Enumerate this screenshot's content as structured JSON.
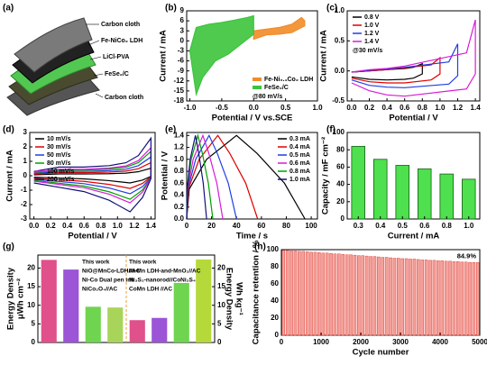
{
  "chart_data": [
    {
      "type": "diagram",
      "panel": "(a)",
      "labels": [
        "Carbon cloth",
        "Fe-NiCo₂ LDH",
        "LiCl-PVA",
        "FeSe₂/C",
        "Carbon cloth"
      ]
    },
    {
      "type": "line",
      "panel": "(b)",
      "fill": true,
      "xlabel": "Potential / V vs.SCE",
      "ylabel": "Current / mA",
      "xlim": [
        -1.05,
        1.0
      ],
      "ylim": [
        -18,
        9
      ],
      "xticks": [
        {
          "value": -1,
          "label": "-1.0"
        },
        -0.5,
        {
          "value": 0,
          "label": "0.0"
        },
        0.5,
        {
          "value": 1,
          "label": "1.0"
        }
      ],
      "yticks": [
        -18,
        -15,
        -12,
        -9,
        -6,
        -3,
        0,
        3,
        6,
        9
      ],
      "legend": "lower right",
      "annotation": "@80 mV/s",
      "series": [
        {
          "name": "Fe-Ni₀.₁Co₂ LDH",
          "color": "#f28c28",
          "x": [
            0,
            0.2,
            0.4,
            0.6,
            0.75,
            0.8,
            0.8,
            0.6,
            0.4,
            0.2,
            0
          ],
          "values": [
            3,
            3.5,
            4,
            5,
            7,
            6,
            4.5,
            2.5,
            2,
            1.8,
            0.5
          ]
        },
        {
          "name": "FeSe₂/C",
          "color": "#3cc43c",
          "x": [
            -1.0,
            -0.9,
            -0.7,
            -0.5,
            -0.3,
            -0.1,
            0,
            0,
            -0.2,
            -0.4,
            -0.6,
            -0.8,
            -0.9,
            -1.0
          ],
          "values": [
            -3,
            4,
            5,
            5.5,
            6.2,
            7,
            7.5,
            2,
            -1,
            -4,
            -6,
            -11,
            -16,
            -3
          ]
        }
      ]
    },
    {
      "type": "line",
      "panel": "(c)",
      "xlabel": "Potential / V",
      "ylabel": "Current / mA",
      "xlim": [
        -0.05,
        1.45
      ],
      "ylim": [
        -0.5,
        1.0
      ],
      "xticks": [
        {
          "value": 0,
          "label": "0.0"
        },
        0.2,
        0.4,
        0.6,
        0.8,
        {
          "value": 1,
          "label": "1.0"
        },
        1.2,
        1.4
      ],
      "yticks": [
        -0.5,
        {
          "value": 0,
          "label": "0.0"
        },
        0.5,
        {
          "value": 1,
          "label": "1.0"
        }
      ],
      "legend": "upper left",
      "annotation": "@30 mV/s",
      "series": [
        {
          "name": "0.8 V",
          "color": "#000000",
          "x": [
            0,
            0.2,
            0.4,
            0.6,
            0.7,
            0.8,
            0.8,
            0.7,
            0.6,
            0.4,
            0.2,
            0
          ],
          "values": [
            -0.02,
            0,
            0.02,
            0.04,
            0.06,
            0.12,
            -0.05,
            -0.12,
            -0.14,
            -0.15,
            -0.14,
            -0.1
          ]
        },
        {
          "name": "1.0 V",
          "color": "#e00000",
          "x": [
            0,
            0.2,
            0.4,
            0.6,
            0.9,
            1.0,
            1.0,
            0.9,
            0.6,
            0.4,
            0.2,
            0
          ],
          "values": [
            -0.02,
            0,
            0.02,
            0.05,
            0.1,
            0.22,
            -0.05,
            -0.15,
            -0.2,
            -0.2,
            -0.18,
            -0.12
          ]
        },
        {
          "name": "1.2 V",
          "color": "#1f3fe0",
          "x": [
            0,
            0.2,
            0.4,
            0.6,
            1.1,
            1.2,
            1.2,
            1.1,
            0.6,
            0.4,
            0.2,
            0
          ],
          "values": [
            -0.02,
            0.01,
            0.03,
            0.06,
            0.15,
            0.45,
            -0.08,
            -0.22,
            -0.28,
            -0.27,
            -0.24,
            -0.15
          ]
        },
        {
          "name": "1.4 V",
          "color": "#d81bd8",
          "x": [
            0,
            0.2,
            0.4,
            0.6,
            1.3,
            1.4,
            1.4,
            1.3,
            0.6,
            0.4,
            0.2,
            0
          ],
          "values": [
            -0.02,
            0.02,
            0.04,
            0.08,
            0.3,
            0.85,
            -0.05,
            -0.3,
            -0.42,
            -0.4,
            -0.33,
            -0.2
          ]
        }
      ]
    },
    {
      "type": "line",
      "panel": "(d)",
      "xlabel": "Potential / V",
      "ylabel": "Current / mA",
      "xlim": [
        -0.05,
        1.45
      ],
      "ylim": [
        -3,
        3
      ],
      "xticks": [
        {
          "value": 0,
          "label": "0.0"
        },
        0.2,
        0.4,
        0.6,
        0.8,
        {
          "value": 1,
          "label": "1.0"
        },
        1.2,
        1.4
      ],
      "yticks": [
        -3,
        -2,
        -1,
        0,
        1,
        2,
        3
      ],
      "legend": "upper left",
      "x": [
        0,
        0.3,
        0.6,
        0.9,
        1.1,
        1.25,
        1.4,
        1.4,
        1.3,
        1.15,
        0.9,
        0.6,
        0.3,
        0
      ],
      "series": [
        {
          "name": "10 mV/s",
          "color": "#000000",
          "values": [
            0.06,
            0.12,
            0.12,
            0.14,
            0.18,
            0.28,
            0.52,
            -0.04,
            -0.3,
            -0.5,
            -0.34,
            -0.22,
            -0.16,
            -0.1
          ]
        },
        {
          "name": "30 mV/s",
          "color": "#e00000",
          "values": [
            0.11,
            0.21,
            0.21,
            0.25,
            0.32,
            0.49,
            0.91,
            -0.07,
            -0.53,
            -0.88,
            -0.6,
            -0.39,
            -0.28,
            -0.18
          ]
        },
        {
          "name": "50 mV/s",
          "color": "#1f3fe0",
          "values": [
            0.15,
            0.3,
            0.3,
            0.35,
            0.45,
            0.7,
            1.3,
            -0.1,
            -0.75,
            -1.25,
            -0.85,
            -0.55,
            -0.4,
            -0.25
          ]
        },
        {
          "name": "80 mV/s",
          "color": "#00a000",
          "values": [
            0.2,
            0.39,
            0.39,
            0.46,
            0.59,
            0.91,
            1.69,
            -0.13,
            -0.98,
            -1.63,
            -1.11,
            -0.72,
            -0.52,
            -0.33
          ]
        },
        {
          "name": "100 mV/s",
          "color": "#d81bd8",
          "values": [
            0.23,
            0.45,
            0.45,
            0.53,
            0.68,
            1.05,
            1.95,
            -0.15,
            -1.13,
            -1.88,
            -1.28,
            -0.83,
            -0.6,
            -0.38
          ]
        },
        {
          "name": "200 mV/s",
          "color": "#10107a",
          "values": [
            0.3,
            0.6,
            0.6,
            0.7,
            0.9,
            1.4,
            2.6,
            -0.2,
            -1.5,
            -2.5,
            -1.7,
            -1.1,
            -0.8,
            -0.5
          ]
        }
      ]
    },
    {
      "type": "line",
      "panel": "(e)",
      "xlabel": "Time / s",
      "ylabel": "Potential / V",
      "xlim": [
        0,
        105
      ],
      "ylim": [
        0,
        1.45
      ],
      "xticks": [
        0,
        20,
        40,
        60,
        80,
        100
      ],
      "yticks": [
        {
          "value": 0,
          "label": "0.0"
        },
        0.2,
        0.4,
        0.6,
        0.8,
        {
          "value": 1,
          "label": "1.0"
        },
        1.2,
        1.4
      ],
      "legend": "upper right",
      "series": [
        {
          "name": "0.3 mA",
          "color": "#000000",
          "x": [
            0,
            2,
            16,
            40,
            56.5,
            78.5,
            95
          ],
          "values": [
            0,
            0.5,
            1.0,
            1.4,
            1.1,
            0.6,
            0
          ]
        },
        {
          "name": "0.4 mA",
          "color": "#e00000",
          "x": [
            0,
            1.3,
            10,
            25,
            34.6,
            47.4,
            57
          ],
          "values": [
            0,
            0.5,
            1.0,
            1.4,
            1.1,
            0.6,
            0
          ]
        },
        {
          "name": "0.5 mA",
          "color": "#1f3fe0",
          "x": [
            0,
            0.9,
            7.2,
            18,
            24.6,
            33.4,
            40
          ],
          "values": [
            0,
            0.5,
            1.0,
            1.4,
            1.1,
            0.6,
            0
          ]
        },
        {
          "name": "0.6 mA",
          "color": "#d81bd8",
          "x": [
            0,
            0.7,
            5.2,
            13,
            17.8,
            24.2,
            29
          ],
          "values": [
            0,
            0.5,
            1.0,
            1.4,
            1.1,
            0.6,
            0
          ]
        },
        {
          "name": "0.8 mA",
          "color": "#00a000",
          "x": [
            0,
            0.5,
            3.6,
            9,
            12.6,
            17.4,
            21
          ],
          "values": [
            0,
            0.5,
            1.0,
            1.4,
            1.1,
            0.6,
            0
          ]
        },
        {
          "name": "1.0 mA",
          "color": "#10107a",
          "x": [
            0,
            0.4,
            2.8,
            7,
            9.7,
            13.3,
            16
          ],
          "values": [
            0,
            0.5,
            1.0,
            1.4,
            1.1,
            0.6,
            0
          ]
        }
      ]
    },
    {
      "type": "bar",
      "panel": "(f)",
      "xlabel": "Current / mA",
      "ylabel": "Capacity / mF cm⁻²",
      "categories": [
        "0.3",
        "0.4",
        "0.5",
        "0.6",
        "0.8",
        "1.0"
      ],
      "values": [
        84,
        69,
        62,
        58,
        52,
        46
      ],
      "color": "#4ee04e",
      "ylim": [
        0,
        100
      ],
      "yticks": [
        0,
        20,
        40,
        60,
        80,
        100
      ]
    },
    {
      "type": "dual_bar",
      "panel": "(g)",
      "ylabel": [
        "Energy Density",
        "μWh cm⁻²"
      ],
      "y2label": [
        "Energy Density",
        "Wh kg⁻¹"
      ],
      "ylim": [
        0,
        23.5
      ],
      "yticks": [
        0,
        5,
        10,
        15,
        20
      ],
      "y2lim": [
        0,
        23.5
      ],
      "y2ticks": [
        0,
        5,
        10,
        15,
        20
      ],
      "bars": [
        {
          "name": "This work",
          "color": "#e0508a",
          "value": 22.2,
          "axis": "y"
        },
        {
          "name": "NiO@MnCo-LDH//AC",
          "color": "#9b55d6",
          "value": 19.6,
          "axis": "y"
        },
        {
          "name": "Ni-Co Dual pen ink",
          "color": "#6fd44f",
          "value": 9.6,
          "axis": "y"
        },
        {
          "name": "NiCo₂O₄//AC",
          "color": "#a9d45a",
          "value": 9.4,
          "axis": "y"
        },
        {
          "name": "CoMn LDH //AC",
          "color": "#e0508a",
          "value": 6.0,
          "axis": "y2"
        },
        {
          "name": "Ni₃S₂-nanorod//CoNi₂S₄",
          "color": "#9b55d6",
          "value": 6.6,
          "axis": "y2"
        },
        {
          "name": "Ni-Mn LDH-and-MnO₂//AC",
          "color": "#6fd44f",
          "value": 16.0,
          "axis": "y2"
        },
        {
          "name": "This work",
          "color": "#b5d93a",
          "value": 22.3,
          "axis": "y2"
        }
      ]
    },
    {
      "type": "bar",
      "panel": "(h)",
      "xlabel": "Cycle number",
      "ylabel": "Capacitance retention / %",
      "color": "#f4a09a",
      "xlim": [
        0,
        5000
      ],
      "ylim": [
        0,
        100
      ],
      "xticks": [
        0,
        1000,
        2000,
        3000,
        4000,
        5000
      ],
      "yticks": [
        0,
        20,
        40,
        60,
        80,
        100
      ],
      "annotation": "84.9%",
      "x": [
        100,
        200,
        300,
        400,
        500,
        600,
        700,
        800,
        900,
        1000,
        1100,
        1200,
        1300,
        1400,
        1500,
        1600,
        1700,
        1800,
        1900,
        2000,
        2100,
        2200,
        2300,
        2400,
        2500,
        2600,
        2700,
        2800,
        2900,
        3000,
        3100,
        3200,
        3300,
        3400,
        3500,
        3600,
        3700,
        3800,
        3900,
        4000,
        4100,
        4200,
        4300,
        4400,
        4500,
        4600,
        4700,
        4800,
        4900,
        5000
      ],
      "values": [
        99,
        99,
        98.5,
        98.5,
        98,
        98,
        97.5,
        97,
        97,
        96.5,
        96,
        96,
        95.5,
        95,
        95,
        94.5,
        94,
        94,
        93.5,
        93,
        93,
        92.5,
        92,
        92,
        91.5,
        91,
        91,
        90.5,
        90,
        90,
        89.5,
        89.5,
        89,
        89,
        88.5,
        88,
        88,
        87.5,
        87.5,
        87,
        87,
        86.5,
        86.5,
        86,
        86,
        85.5,
        85.5,
        85,
        85,
        84.9
      ]
    }
  ]
}
